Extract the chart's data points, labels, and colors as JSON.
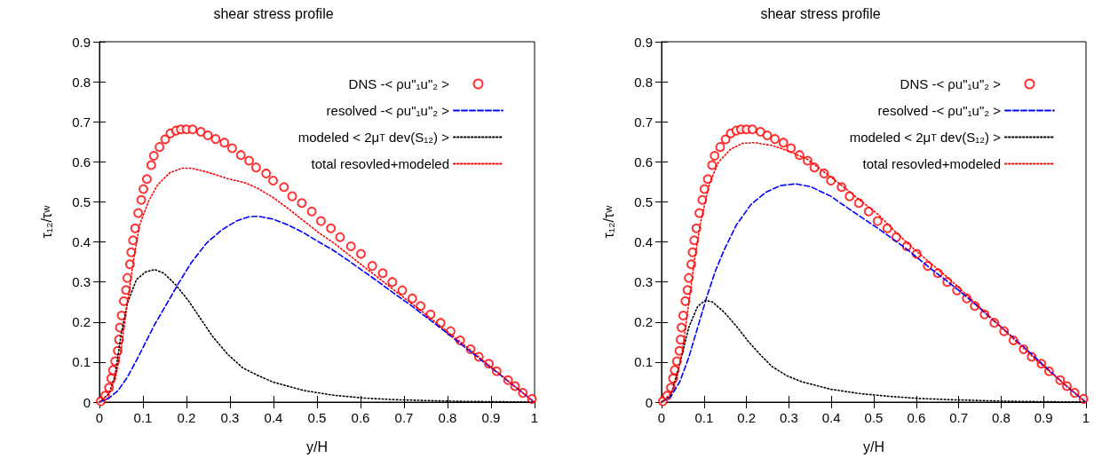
{
  "chart_data": [
    {
      "type": "line",
      "title": "shear stress profile",
      "xlabel": "y/H",
      "ylabel": "τ₁₂/τ$_{w}$",
      "xlim": [
        0,
        1
      ],
      "xticks": [
        0,
        0.1,
        0.2,
        0.3,
        0.4,
        0.5,
        0.6,
        0.7,
        0.8,
        0.9,
        1
      ],
      "ylim": [
        0,
        0.9
      ],
      "yticks": [
        0,
        0.1,
        0.2,
        0.3,
        0.4,
        0.5,
        0.6,
        0.7,
        0.8,
        0.9
      ],
      "grid": false,
      "legend": "top right",
      "series": [
        {
          "name": "DNS -< ρu\"₁u\"₂ >",
          "type": "scatter",
          "marker": "circle",
          "color": "#ff0000",
          "x": [
            0.003,
            0.013,
            0.022,
            0.027,
            0.031,
            0.036,
            0.042,
            0.045,
            0.047,
            0.051,
            0.056,
            0.061,
            0.064,
            0.07,
            0.073,
            0.077,
            0.082,
            0.089,
            0.096,
            0.101,
            0.109,
            0.119,
            0.125,
            0.138,
            0.151,
            0.163,
            0.176,
            0.187,
            0.2,
            0.214,
            0.233,
            0.249,
            0.267,
            0.287,
            0.305,
            0.325,
            0.344,
            0.36,
            0.383,
            0.399,
            0.424,
            0.443,
            0.465,
            0.488,
            0.509,
            0.532,
            0.553,
            0.578,
            0.601,
            0.627,
            0.651,
            0.673,
            0.696,
            0.719,
            0.738,
            0.761,
            0.784,
            0.807,
            0.829,
            0.853,
            0.872,
            0.895,
            0.913,
            0.939,
            0.955,
            0.973,
            0.994
          ],
          "values": [
            0.002,
            0.016,
            0.036,
            0.059,
            0.08,
            0.102,
            0.128,
            0.156,
            0.186,
            0.216,
            0.252,
            0.28,
            0.31,
            0.344,
            0.374,
            0.404,
            0.434,
            0.472,
            0.505,
            0.532,
            0.557,
            0.592,
            0.615,
            0.637,
            0.656,
            0.671,
            0.678,
            0.681,
            0.681,
            0.681,
            0.675,
            0.666,
            0.657,
            0.648,
            0.634,
            0.617,
            0.603,
            0.586,
            0.571,
            0.553,
            0.537,
            0.514,
            0.497,
            0.476,
            0.452,
            0.434,
            0.412,
            0.389,
            0.37,
            0.34,
            0.322,
            0.3,
            0.279,
            0.259,
            0.24,
            0.219,
            0.198,
            0.177,
            0.154,
            0.132,
            0.113,
            0.096,
            0.077,
            0.055,
            0.04,
            0.023,
            0.008
          ]
        },
        {
          "name": "resolved -< ρu\"₁u\"₂ >",
          "marker": "none",
          "line_style": "dashed",
          "color": "#0000ff",
          "x": [
            0,
            0.022,
            0.043,
            0.064,
            0.085,
            0.106,
            0.127,
            0.155,
            0.183,
            0.211,
            0.246,
            0.281,
            0.316,
            0.344,
            0.365,
            0.399,
            0.434,
            0.469,
            0.504,
            0.539,
            0.574,
            0.609,
            0.644,
            0.679,
            0.714,
            0.749,
            0.783,
            0.818,
            0.853,
            0.888,
            0.923,
            0.958,
            0.997
          ],
          "values": [
            0,
            0.01,
            0.029,
            0.062,
            0.104,
            0.149,
            0.194,
            0.246,
            0.299,
            0.348,
            0.397,
            0.43,
            0.453,
            0.463,
            0.464,
            0.457,
            0.442,
            0.423,
            0.4,
            0.378,
            0.352,
            0.325,
            0.298,
            0.27,
            0.243,
            0.214,
            0.186,
            0.156,
            0.126,
            0.096,
            0.066,
            0.036,
            0.002
          ]
        },
        {
          "name": "modeled < 2μ$_{T}$ dev(S₁₂) >",
          "marker": "none",
          "line_style": "dotted",
          "color": "#000000",
          "x": [
            0,
            0.022,
            0.036,
            0.05,
            0.064,
            0.085,
            0.106,
            0.127,
            0.148,
            0.176,
            0.204,
            0.232,
            0.26,
            0.295,
            0.33,
            0.365,
            0.399,
            0.469,
            0.539,
            0.609,
            0.679,
            0.818,
            0.997
          ],
          "values": [
            0,
            0.021,
            0.066,
            0.171,
            0.246,
            0.306,
            0.325,
            0.331,
            0.322,
            0.292,
            0.254,
            0.209,
            0.164,
            0.119,
            0.085,
            0.066,
            0.05,
            0.029,
            0.017,
            0.01,
            0.006,
            0.002,
            0
          ]
        },
        {
          "name": "total resovled+modeled",
          "marker": "none",
          "line_style": "dotted",
          "color": "#ff0000",
          "x": [
            0,
            0.022,
            0.036,
            0.05,
            0.064,
            0.078,
            0.092,
            0.113,
            0.134,
            0.162,
            0.19,
            0.211,
            0.246,
            0.295,
            0.337,
            0.365,
            0.399,
            0.434,
            0.469,
            0.504,
            0.539,
            0.574,
            0.609,
            0.644,
            0.679,
            0.714,
            0.749,
            0.783,
            0.818,
            0.853,
            0.888,
            0.923,
            0.958,
            0.997
          ],
          "values": [
            0,
            0.021,
            0.059,
            0.134,
            0.246,
            0.352,
            0.442,
            0.502,
            0.543,
            0.573,
            0.584,
            0.584,
            0.575,
            0.558,
            0.547,
            0.533,
            0.511,
            0.483,
            0.453,
            0.423,
            0.397,
            0.367,
            0.337,
            0.308,
            0.278,
            0.249,
            0.22,
            0.19,
            0.16,
            0.13,
            0.098,
            0.068,
            0.036,
            0.002
          ]
        }
      ]
    },
    {
      "type": "line",
      "title": "shear stress profile",
      "xlabel": "y/H",
      "ylabel": "τ₁₂/τ$_{w}$",
      "xlim": [
        0,
        1
      ],
      "xticks": [
        0,
        0.1,
        0.2,
        0.3,
        0.4,
        0.5,
        0.6,
        0.7,
        0.8,
        0.9,
        1
      ],
      "ylim": [
        0,
        0.9
      ],
      "yticks": [
        0,
        0.1,
        0.2,
        0.3,
        0.4,
        0.5,
        0.6,
        0.7,
        0.8,
        0.9
      ],
      "grid": false,
      "legend": "top right",
      "series": [
        {
          "name": "DNS -< ρu\"₁u\"₂ >",
          "type": "scatter",
          "marker": "circle",
          "color": "#ff0000",
          "x": [
            0.003,
            0.013,
            0.022,
            0.027,
            0.031,
            0.036,
            0.042,
            0.045,
            0.047,
            0.051,
            0.056,
            0.061,
            0.064,
            0.07,
            0.073,
            0.077,
            0.082,
            0.089,
            0.096,
            0.101,
            0.109,
            0.119,
            0.125,
            0.138,
            0.151,
            0.163,
            0.176,
            0.187,
            0.2,
            0.214,
            0.233,
            0.249,
            0.267,
            0.287,
            0.305,
            0.325,
            0.344,
            0.36,
            0.383,
            0.399,
            0.424,
            0.443,
            0.465,
            0.488,
            0.509,
            0.532,
            0.553,
            0.578,
            0.601,
            0.627,
            0.651,
            0.673,
            0.696,
            0.719,
            0.738,
            0.761,
            0.784,
            0.807,
            0.829,
            0.853,
            0.872,
            0.895,
            0.913,
            0.939,
            0.955,
            0.973,
            0.994
          ],
          "values": [
            0.002,
            0.016,
            0.036,
            0.059,
            0.08,
            0.102,
            0.128,
            0.156,
            0.186,
            0.216,
            0.252,
            0.28,
            0.31,
            0.344,
            0.374,
            0.404,
            0.434,
            0.472,
            0.505,
            0.532,
            0.557,
            0.592,
            0.615,
            0.637,
            0.656,
            0.671,
            0.678,
            0.681,
            0.681,
            0.681,
            0.675,
            0.666,
            0.657,
            0.648,
            0.634,
            0.617,
            0.603,
            0.586,
            0.571,
            0.553,
            0.537,
            0.514,
            0.497,
            0.476,
            0.452,
            0.434,
            0.412,
            0.389,
            0.37,
            0.34,
            0.322,
            0.3,
            0.279,
            0.259,
            0.24,
            0.219,
            0.198,
            0.177,
            0.154,
            0.132,
            0.113,
            0.096,
            0.077,
            0.055,
            0.04,
            0.023,
            0.008
          ]
        },
        {
          "name": "resolved -< ρu\"₁u\"₂ >",
          "marker": "none",
          "line_style": "dashed",
          "color": "#0000ff",
          "x": [
            0,
            0.022,
            0.043,
            0.064,
            0.085,
            0.106,
            0.127,
            0.148,
            0.176,
            0.211,
            0.246,
            0.281,
            0.316,
            0.351,
            0.399,
            0.434,
            0.469,
            0.504,
            0.539,
            0.574,
            0.609,
            0.644,
            0.679,
            0.714,
            0.749,
            0.783,
            0.818,
            0.853,
            0.888,
            0.923,
            0.958,
            0.997
          ],
          "values": [
            0,
            0.014,
            0.051,
            0.111,
            0.186,
            0.261,
            0.328,
            0.381,
            0.442,
            0.494,
            0.524,
            0.541,
            0.545,
            0.538,
            0.514,
            0.488,
            0.463,
            0.438,
            0.412,
            0.385,
            0.355,
            0.325,
            0.297,
            0.267,
            0.235,
            0.203,
            0.171,
            0.138,
            0.104,
            0.07,
            0.036,
            0.002
          ]
        },
        {
          "name": "modeled < 2μ$_{T}$ dev(S₁₂) >",
          "marker": "none",
          "line_style": "dotted",
          "color": "#000000",
          "x": [
            0,
            0.022,
            0.043,
            0.064,
            0.085,
            0.103,
            0.12,
            0.148,
            0.176,
            0.204,
            0.232,
            0.26,
            0.295,
            0.33,
            0.399,
            0.469,
            0.539,
            0.609,
            0.679,
            0.818,
            0.997
          ],
          "values": [
            0,
            0.017,
            0.096,
            0.186,
            0.239,
            0.254,
            0.25,
            0.224,
            0.19,
            0.152,
            0.119,
            0.089,
            0.066,
            0.051,
            0.032,
            0.021,
            0.014,
            0.009,
            0.006,
            0.002,
            0
          ]
        },
        {
          "name": "total resovled+modeled",
          "marker": "none",
          "line_style": "dotted",
          "color": "#ff0000",
          "x": [
            0,
            0.022,
            0.036,
            0.05,
            0.064,
            0.078,
            0.092,
            0.113,
            0.134,
            0.162,
            0.19,
            0.218,
            0.26,
            0.302,
            0.344,
            0.385,
            0.427,
            0.469,
            0.511,
            0.553,
            0.595,
            0.637,
            0.679,
            0.721,
            0.763,
            0.804,
            0.846,
            0.888,
            0.93,
            0.972,
            0.997
          ],
          "values": [
            0,
            0.021,
            0.059,
            0.134,
            0.246,
            0.359,
            0.449,
            0.547,
            0.599,
            0.631,
            0.646,
            0.648,
            0.641,
            0.626,
            0.606,
            0.573,
            0.539,
            0.503,
            0.468,
            0.423,
            0.382,
            0.344,
            0.307,
            0.265,
            0.224,
            0.183,
            0.141,
            0.1,
            0.062,
            0.025,
            0.002
          ]
        }
      ]
    }
  ]
}
